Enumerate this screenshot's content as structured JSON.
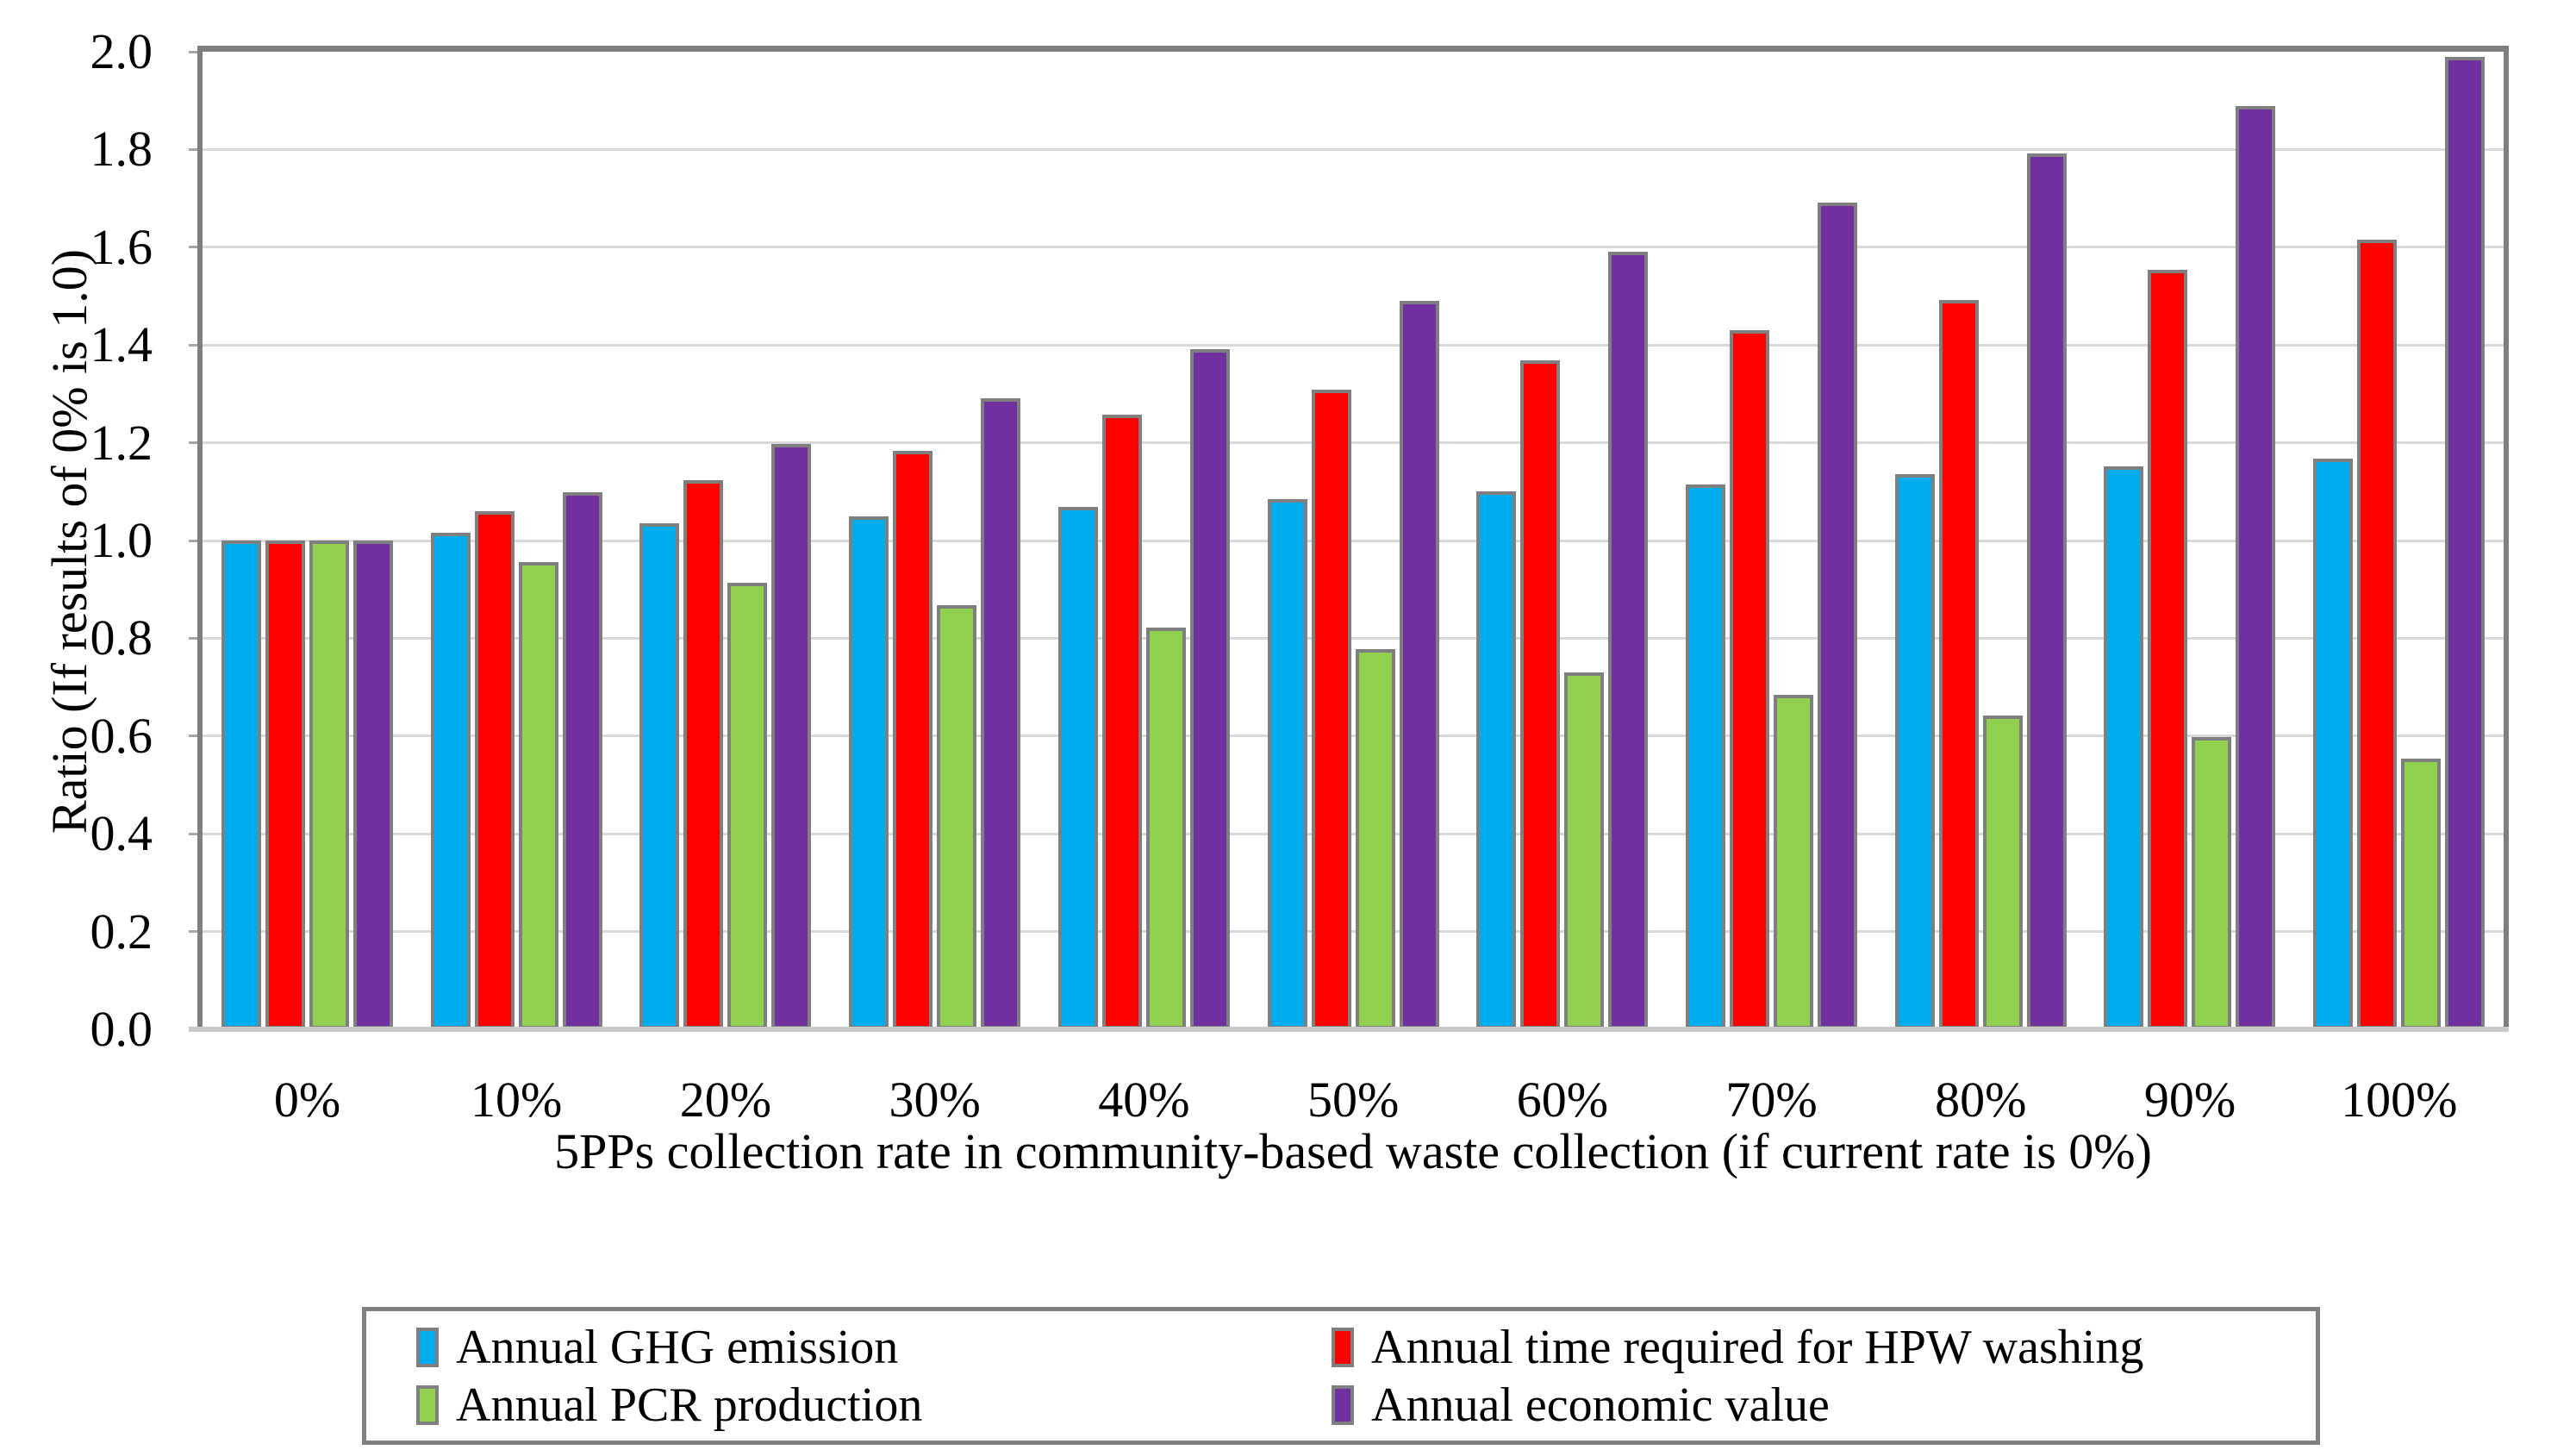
{
  "figure": {
    "background": "#ffffff",
    "frame_color": "#7f7f7f",
    "gridline_color": "#d9d9d9",
    "bar_border_color": "#7f7f7f"
  },
  "yaxis": {
    "title": "Ratio (If results of 0% is 1.0)",
    "min": 0.0,
    "max": 2.0,
    "step": 0.2,
    "tick_labels": [
      "0.0",
      "0.2",
      "0.4",
      "0.6",
      "0.8",
      "1.0",
      "1.2",
      "1.4",
      "1.6",
      "1.8",
      "2.0"
    ]
  },
  "xaxis": {
    "title": "5PPs collection rate in community-based waste collection (if current rate is 0%)"
  },
  "legend": {
    "position": "bottom",
    "entries": [
      {
        "label": "Annual GHG emission",
        "color": "#00aeef"
      },
      {
        "label": "Annual time required for HPW washing",
        "color": "#ff0000"
      },
      {
        "label": "Annual PCR production",
        "color": "#92d050"
      },
      {
        "label": "Annual economic value",
        "color": "#7030a0"
      }
    ]
  },
  "chart_data": {
    "type": "bar",
    "title": "",
    "xlabel": "5PPs collection rate in community-based waste collection (if current rate is 0%)",
    "ylabel": "Ratio (If results of 0% is 1.0)",
    "ylim": [
      0.0,
      2.0
    ],
    "ytick_step": 0.2,
    "grid": true,
    "legend_position": "bottom",
    "categories": [
      "0%",
      "10%",
      "20%",
      "30%",
      "40%",
      "50%",
      "60%",
      "70%",
      "80%",
      "90%",
      "100%"
    ],
    "series": [
      {
        "name": "Annual GHG emission",
        "color": "#00aeef",
        "values": [
          1.0,
          1.016,
          1.035,
          1.05,
          1.068,
          1.084,
          1.1,
          1.115,
          1.135,
          1.152,
          1.167
        ]
      },
      {
        "name": "Annual time required for HPW washing",
        "color": "#ff0000",
        "values": [
          1.0,
          1.06,
          1.124,
          1.183,
          1.258,
          1.309,
          1.368,
          1.43,
          1.492,
          1.554,
          1.616
        ]
      },
      {
        "name": "Annual PCR production",
        "color": "#92d050",
        "values": [
          1.0,
          0.956,
          0.913,
          0.868,
          0.822,
          0.778,
          0.73,
          0.685,
          0.642,
          0.598,
          0.554
        ]
      },
      {
        "name": "Annual economic value",
        "color": "#7030a0",
        "values": [
          1.0,
          1.099,
          1.197,
          1.291,
          1.392,
          1.49,
          1.59,
          1.691,
          1.792,
          1.889,
          1.99
        ]
      }
    ]
  }
}
